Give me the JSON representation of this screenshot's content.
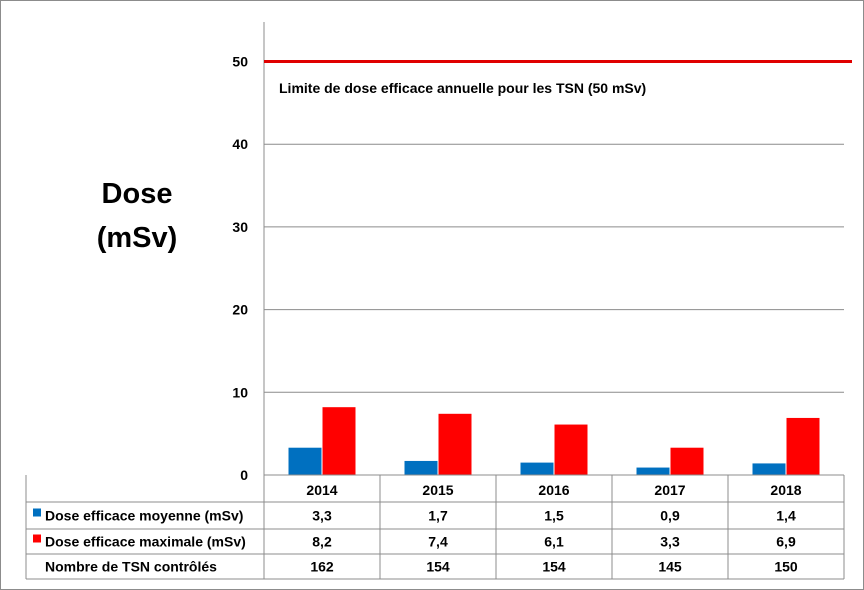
{
  "chart_data": {
    "type": "bar",
    "ylabel_line1": "Dose",
    "ylabel_line2": "(mSv)",
    "ylim": [
      0,
      55
    ],
    "yticks": [
      0,
      10,
      20,
      30,
      40,
      50
    ],
    "grid": true,
    "categories": [
      "2014",
      "2015",
      "2016",
      "2017",
      "2018"
    ],
    "series": [
      {
        "name": "Dose efficace moyenne (mSv)",
        "color": "#0070c0",
        "values": [
          3.3,
          1.7,
          1.5,
          0.9,
          1.4
        ],
        "labels": [
          "3,3",
          "1,7",
          "1,5",
          "0,9",
          "1,4"
        ]
      },
      {
        "name": "Dose efficace maximale (mSv)",
        "color": "#ff0000",
        "values": [
          8.2,
          7.4,
          6.1,
          3.3,
          6.9
        ],
        "labels": [
          "8,2",
          "7,4",
          "6,1",
          "3,3",
          "6,9"
        ]
      }
    ],
    "table_extra_row": {
      "name": "Nombre de TSN contrôlés",
      "values": [
        "162",
        "154",
        "154",
        "145",
        "150"
      ]
    },
    "reference_line": {
      "value": 50,
      "color": "#e00000",
      "label": "Limite de dose efficace annuelle pour les TSN (50 mSv)"
    }
  }
}
